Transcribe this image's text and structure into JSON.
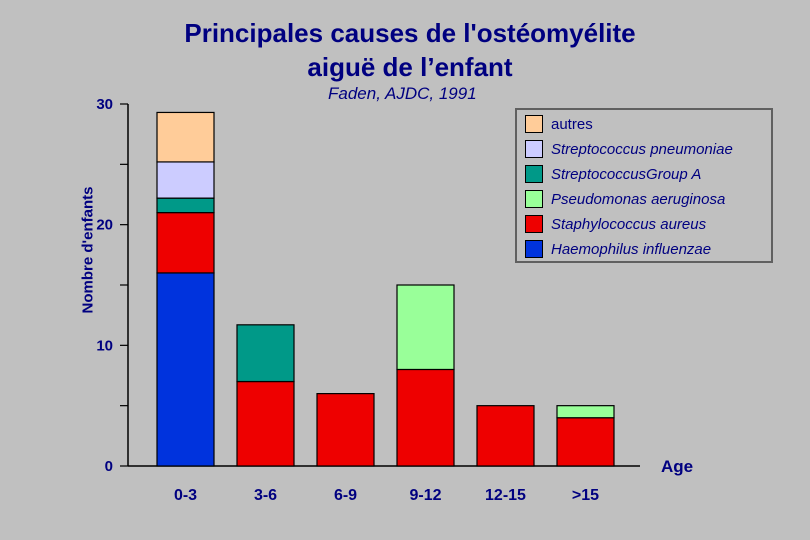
{
  "title_line1": "Principales causes de l'ostéomyélite",
  "title_line2": "aiguë de l’enfant",
  "subtitle": "Faden, AJDC, 1991",
  "chart_data": {
    "type": "bar",
    "stacked": true,
    "ylabel": "Nombre d'enfants",
    "xlabel": "Age",
    "ylim": [
      0,
      30
    ],
    "yticks": [
      0,
      10,
      20,
      30
    ],
    "categories": [
      "0-3",
      "3-6",
      "6-9",
      "9-12",
      "12-15",
      ">15"
    ],
    "series": [
      {
        "name": "Haemophilus influenzae",
        "color": "#0033dd",
        "values": [
          16,
          0,
          0,
          0,
          0,
          0
        ]
      },
      {
        "name": "Staphylococcus aureus",
        "color": "#ee0000",
        "values": [
          5,
          7,
          6,
          8,
          5,
          4
        ]
      },
      {
        "name": "Pseudomonas aeruginosa",
        "color": "#99ff99",
        "values": [
          0,
          0,
          0,
          7,
          0,
          1
        ]
      },
      {
        "name": "Streptococcus Group A",
        "color": "#009988",
        "values": [
          1.2,
          4.7,
          0,
          0,
          0,
          0
        ]
      },
      {
        "name": "Streptococcus pneumoniae",
        "color": "#ccccff",
        "values": [
          3,
          0,
          0,
          0,
          0,
          0
        ]
      },
      {
        "name": "autres",
        "color": "#ffcc99",
        "values": [
          4.1,
          0,
          0,
          0,
          0,
          0
        ]
      }
    ],
    "legend": {
      "placement": "top-right",
      "order_top_to_bottom": [
        "autres",
        "Streptococcus pneumoniae",
        "StreptococcusGroup A",
        "Pseudomonas aeruginosa",
        "Staphylococcus aureus",
        "Haemophilus influenzae"
      ]
    }
  }
}
